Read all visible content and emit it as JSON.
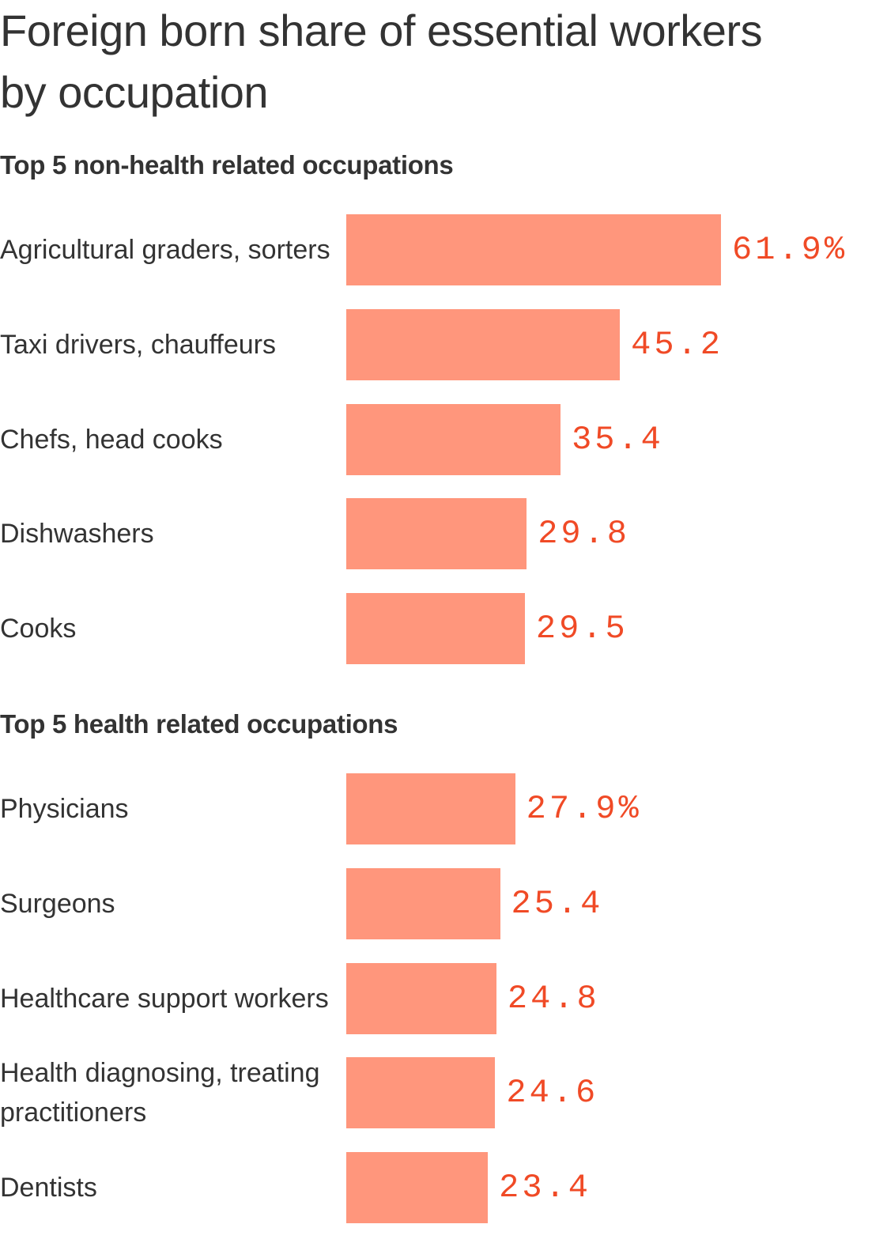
{
  "title": "Foreign born share of essential workers by occupation",
  "chart_data": {
    "type": "bar",
    "orientation": "horizontal",
    "title": "Foreign born share of essential workers by occupation",
    "unit": "%",
    "xlim": [
      0,
      70
    ],
    "groups": [
      {
        "title": "Top 5 non-health related occupations",
        "items": [
          {
            "label": "Agricultural graders, sorters",
            "value": 61.9,
            "display": "61.9%"
          },
          {
            "label": "Taxi drivers, chauffeurs",
            "value": 45.2,
            "display": "45.2"
          },
          {
            "label": "Chefs, head cooks",
            "value": 35.4,
            "display": "35.4"
          },
          {
            "label": "Dishwashers",
            "value": 29.8,
            "display": "29.8"
          },
          {
            "label": "Cooks",
            "value": 29.5,
            "display": "29.5"
          }
        ]
      },
      {
        "title": "Top 5 health related occupations",
        "items": [
          {
            "label": "Physicians",
            "value": 27.9,
            "display": "27.9%"
          },
          {
            "label": "Surgeons",
            "value": 25.4,
            "display": "25.4"
          },
          {
            "label": "Healthcare support workers",
            "value": 24.8,
            "display": "24.8"
          },
          {
            "label": "Health diagnosing, treating practitioners",
            "value": 24.6,
            "display": "24.6"
          },
          {
            "label": "Dentists",
            "value": 23.4,
            "display": "23.4"
          }
        ]
      }
    ]
  },
  "colors": {
    "bar": "#ff967c",
    "value_text": "#f04a26",
    "text": "#333333"
  }
}
